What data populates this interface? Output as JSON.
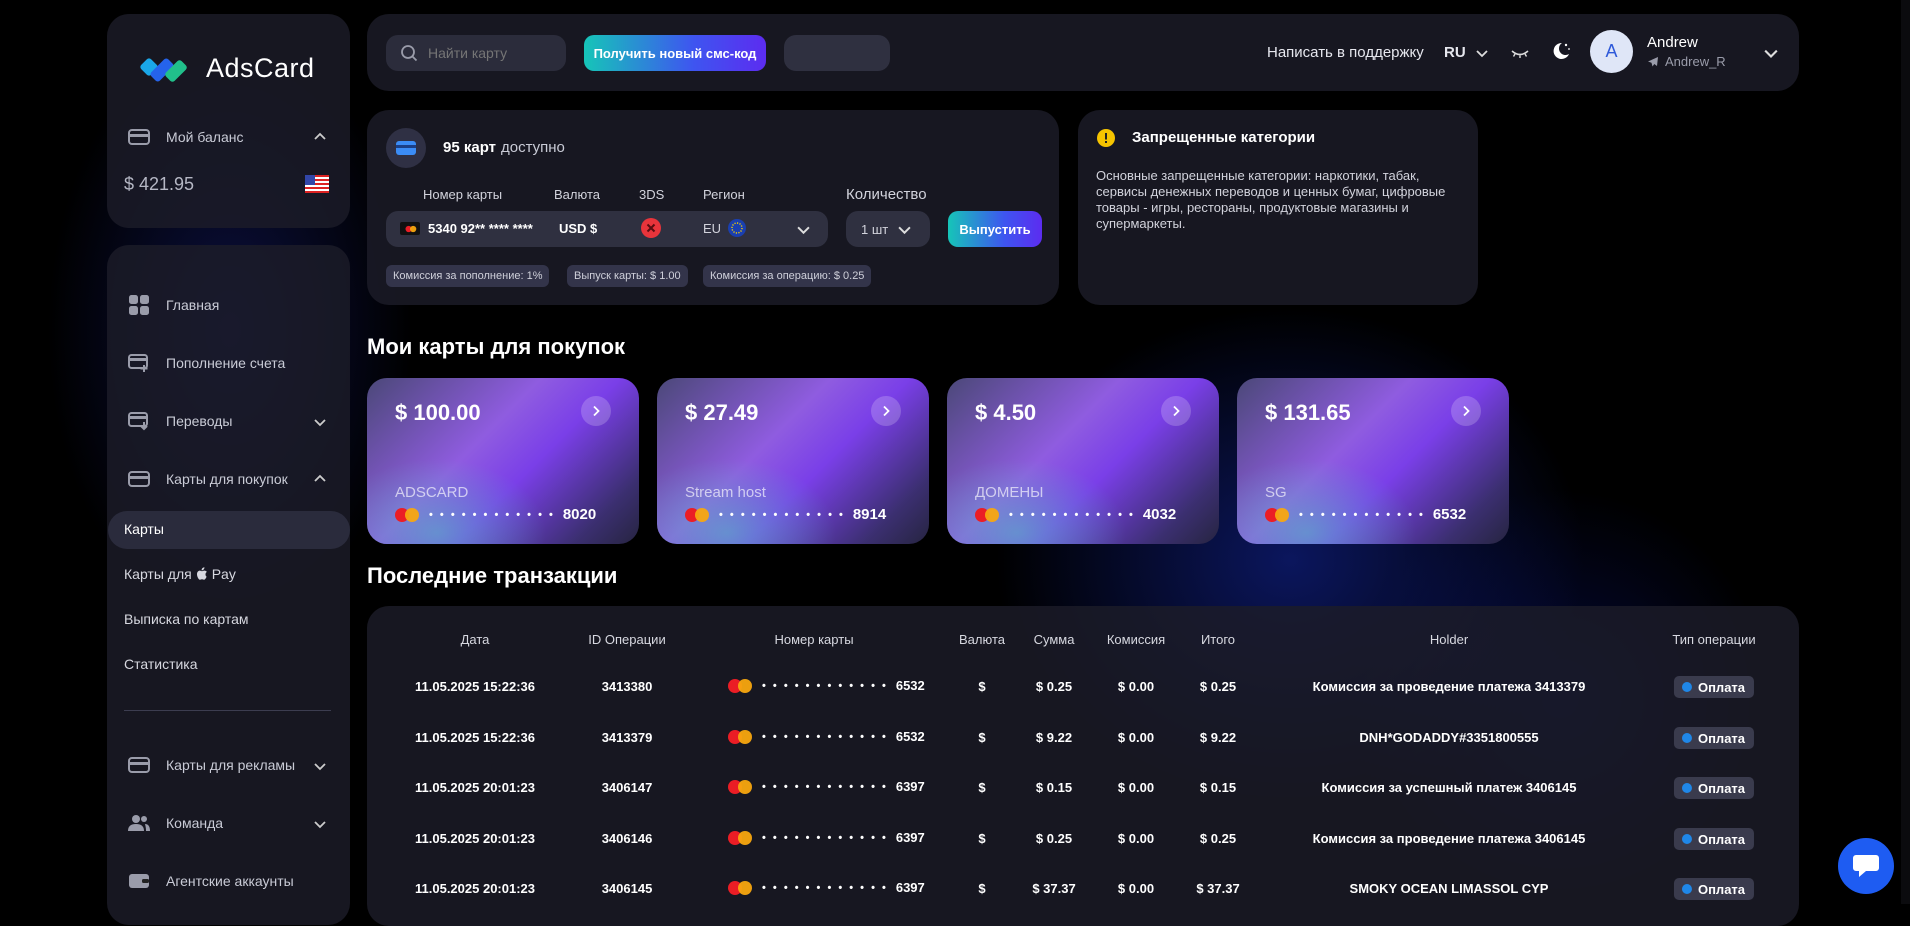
{
  "brand": {
    "name": "AdsCard"
  },
  "balance": {
    "label": "Мой баланс",
    "amount": "$ 421.95"
  },
  "nav": {
    "home": "Главная",
    "topup": "Пополнение счета",
    "transfers": "Переводы",
    "cards_shop": "Карты для покупок",
    "sub_cards": "Карты",
    "sub_applepay": "Карты для",
    "sub_applepay_suffix": "Pay",
    "sub_statement": "Выписка по картам",
    "sub_stats": "Статистика",
    "ads_cards": "Карты для рекламы",
    "team": "Команда",
    "agency": "Агентские аккаунты"
  },
  "topbar": {
    "search_placeholder": "Найти карту",
    "sms_button": "Получить новый смс-код",
    "support": "Написать в поддержку",
    "lang": "RU",
    "user_name": "Andrew",
    "user_handle": "Andrew_R",
    "avatar_letter": "A"
  },
  "issue": {
    "count_bold": "95 карт",
    "count_rest": "доступно",
    "col_number": "Номер карты",
    "col_currency": "Валюта",
    "col_3ds": "3DS",
    "col_region": "Регион",
    "col_qty": "Количество",
    "card_number": "5340 92** **** ****",
    "currency": "USD $",
    "region": "EU",
    "qty": "1 шт",
    "issue_button": "Выпустить",
    "fee_topup": "Комиссия за пополнение: 1%",
    "fee_issue": "Выпуск карты: $ 1.00",
    "fee_op": "Комиссия за операцию: $ 0.25"
  },
  "forbidden": {
    "title": "Запрещенные категории",
    "text": "Основные запрещенные категории: наркотики, табак, сервисы денежных переводов и ценных бумаг, цифровые товары - игры, рестораны, продуктовые магазины и супермаркеты."
  },
  "my_cards": {
    "title": "Мои карты для покупок",
    "cards": [
      {
        "amount": "$ 100.00",
        "name": "ADSCARD",
        "mask": "• • • •  • • • •  • • • •",
        "last4": "8020"
      },
      {
        "amount": "$ 27.49",
        "name": "Stream host",
        "mask": "• • • •  • • • •  • • • •",
        "last4": "8914"
      },
      {
        "amount": "$ 4.50",
        "name": "ДОМЕНЫ",
        "mask": "• • • •  • • • •  • • • •",
        "last4": "4032"
      },
      {
        "amount": "$ 131.65",
        "name": "SG",
        "mask": "• • • •  • • • •  • • • •",
        "last4": "6532"
      }
    ]
  },
  "transactions": {
    "title": "Последние транзакции",
    "headers": {
      "date": "Дата",
      "id": "ID Операции",
      "card": "Номер карты",
      "currency": "Валюта",
      "sum": "Сумма",
      "fee": "Комиссия",
      "total": "Итого",
      "holder": "Holder",
      "type": "Тип операции"
    },
    "rows": [
      {
        "date": "11.05.2025 15:22:36",
        "id": "3413380",
        "mask": "• • • •  • • • •  • • • •",
        "last4": "6532",
        "currency": "$",
        "sum": "$ 0.25",
        "fee": "$ 0.00",
        "total": "$ 0.25",
        "holder": "Комиссия за проведение платежа 3413379",
        "type": "Оплата"
      },
      {
        "date": "11.05.2025 15:22:36",
        "id": "3413379",
        "mask": "• • • •  • • • •  • • • •",
        "last4": "6532",
        "currency": "$",
        "sum": "$ 9.22",
        "fee": "$ 0.00",
        "total": "$ 9.22",
        "holder": "DNH*GODADDY#3351800555",
        "type": "Оплата"
      },
      {
        "date": "11.05.2025 20:01:23",
        "id": "3406147",
        "mask": "• • • •  • • • •  • • • •",
        "last4": "6397",
        "currency": "$",
        "sum": "$ 0.15",
        "fee": "$ 0.00",
        "total": "$ 0.15",
        "holder": "Комиссия за успешный платеж 3406145",
        "type": "Оплата"
      },
      {
        "date": "11.05.2025 20:01:23",
        "id": "3406146",
        "mask": "• • • •  • • • •  • • • •",
        "last4": "6397",
        "currency": "$",
        "sum": "$ 0.25",
        "fee": "$ 0.00",
        "total": "$ 0.25",
        "holder": "Комиссия за проведение платежа 3406145",
        "type": "Оплата"
      },
      {
        "date": "11.05.2025 20:01:23",
        "id": "3406145",
        "mask": "• • • •  • • • •  • • • •",
        "last4": "6397",
        "currency": "$",
        "sum": "$ 37.37",
        "fee": "$ 0.00",
        "total": "$ 37.37",
        "holder": "SMOKY OCEAN LIMASSOL CYP",
        "type": "Оплата"
      }
    ]
  },
  "colors": {
    "accent_start": "#16c5b8",
    "accent_end": "#5c2cf0",
    "chat": "#1e5cf2"
  }
}
